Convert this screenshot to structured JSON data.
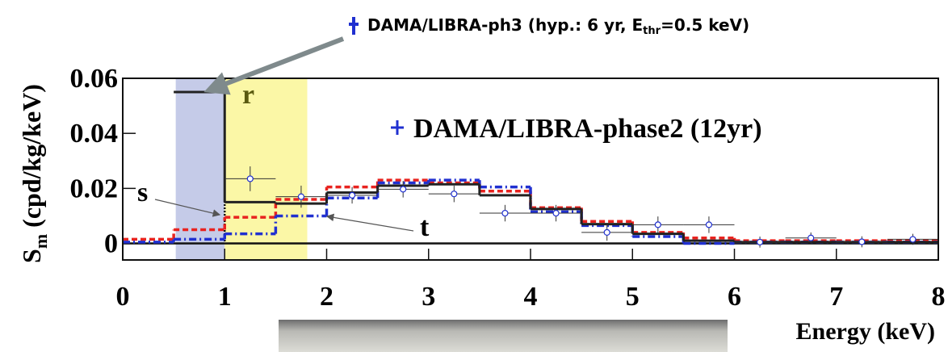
{
  "chart_data": {
    "type": "step",
    "annotation_top": {
      "before": "DAMA/LIBRA-ph3 (hyp.: 6 yr, E",
      "sub": "thr",
      "after": "=0.5 keV)"
    },
    "ylabel": {
      "main": "S",
      "sub": "m",
      "rest": " (cpd/kg/keV)"
    },
    "xlabel": "Energy (keV)",
    "xlim": [
      0,
      8
    ],
    "xticks": [
      0,
      1,
      2,
      3,
      4,
      5,
      6,
      7,
      8
    ],
    "ylim": [
      -0.006,
      0.06
    ],
    "yticks": [
      0,
      0.02,
      0.04,
      0.06
    ],
    "bands": [
      {
        "range": [
          0.52,
          1
        ],
        "color": "#c5cbe8"
      },
      {
        "range": [
          1,
          1.81
        ],
        "color": "#fbf7a6"
      }
    ],
    "labels": [
      "r",
      "s",
      "t"
    ],
    "bin_edges": [
      0,
      0.5,
      1,
      1.5,
      2,
      2.5,
      3,
      3.5,
      4,
      4.5,
      5,
      5.5,
      6,
      6.5,
      7,
      7.5,
      8
    ],
    "step_series": [
      {
        "color": "#e8231f",
        "dash": "7,4",
        "values": [
          0.0015,
          0.005,
          0.0095,
          0.016,
          0.0205,
          0.023,
          0.022,
          0.019,
          0.013,
          0.008,
          0.004,
          0.002,
          0.001,
          0.001,
          0.001,
          0.001
        ]
      },
      {
        "color": "#2030d0",
        "dash": "9,4,2,4",
        "values": [
          0.0005,
          0.0015,
          0.0035,
          0.01,
          0.0165,
          0.022,
          0.023,
          0.0205,
          0.0115,
          0.0065,
          0.0025,
          0.0,
          0.0005,
          0.0005,
          0.0005,
          0.0005
        ]
      },
      {
        "color": "#222222",
        "dash": "none",
        "values": [
          null,
          0.055,
          0.015,
          0.0145,
          0.0185,
          0.021,
          0.0215,
          0.0175,
          0.0125,
          0.007,
          0.0035,
          0.001,
          0.0005,
          0.0005,
          0.0005,
          0.0005
        ]
      }
    ],
    "series": [
      {
        "name": "DAMA/LIBRA-phase2 (12yr)",
        "color": "#2030d0",
        "x": [
          1.25,
          1.75,
          2.25,
          2.75,
          3.25,
          3.75,
          4.25,
          4.75,
          5.25,
          5.75,
          6.25,
          6.75,
          7.25,
          7.75
        ],
        "values": [
          0.0235,
          0.017,
          0.0175,
          0.0197,
          0.018,
          0.011,
          0.011,
          0.004,
          0.0068,
          0.0068,
          0.0005,
          0.002,
          0.0006,
          0.0015
        ],
        "errors": [
          0.0045,
          0.004,
          0.003,
          0.003,
          0.003,
          0.003,
          0.003,
          0.003,
          0.003,
          0.003,
          0.002,
          0.002,
          0.002,
          0.002
        ]
      }
    ]
  }
}
